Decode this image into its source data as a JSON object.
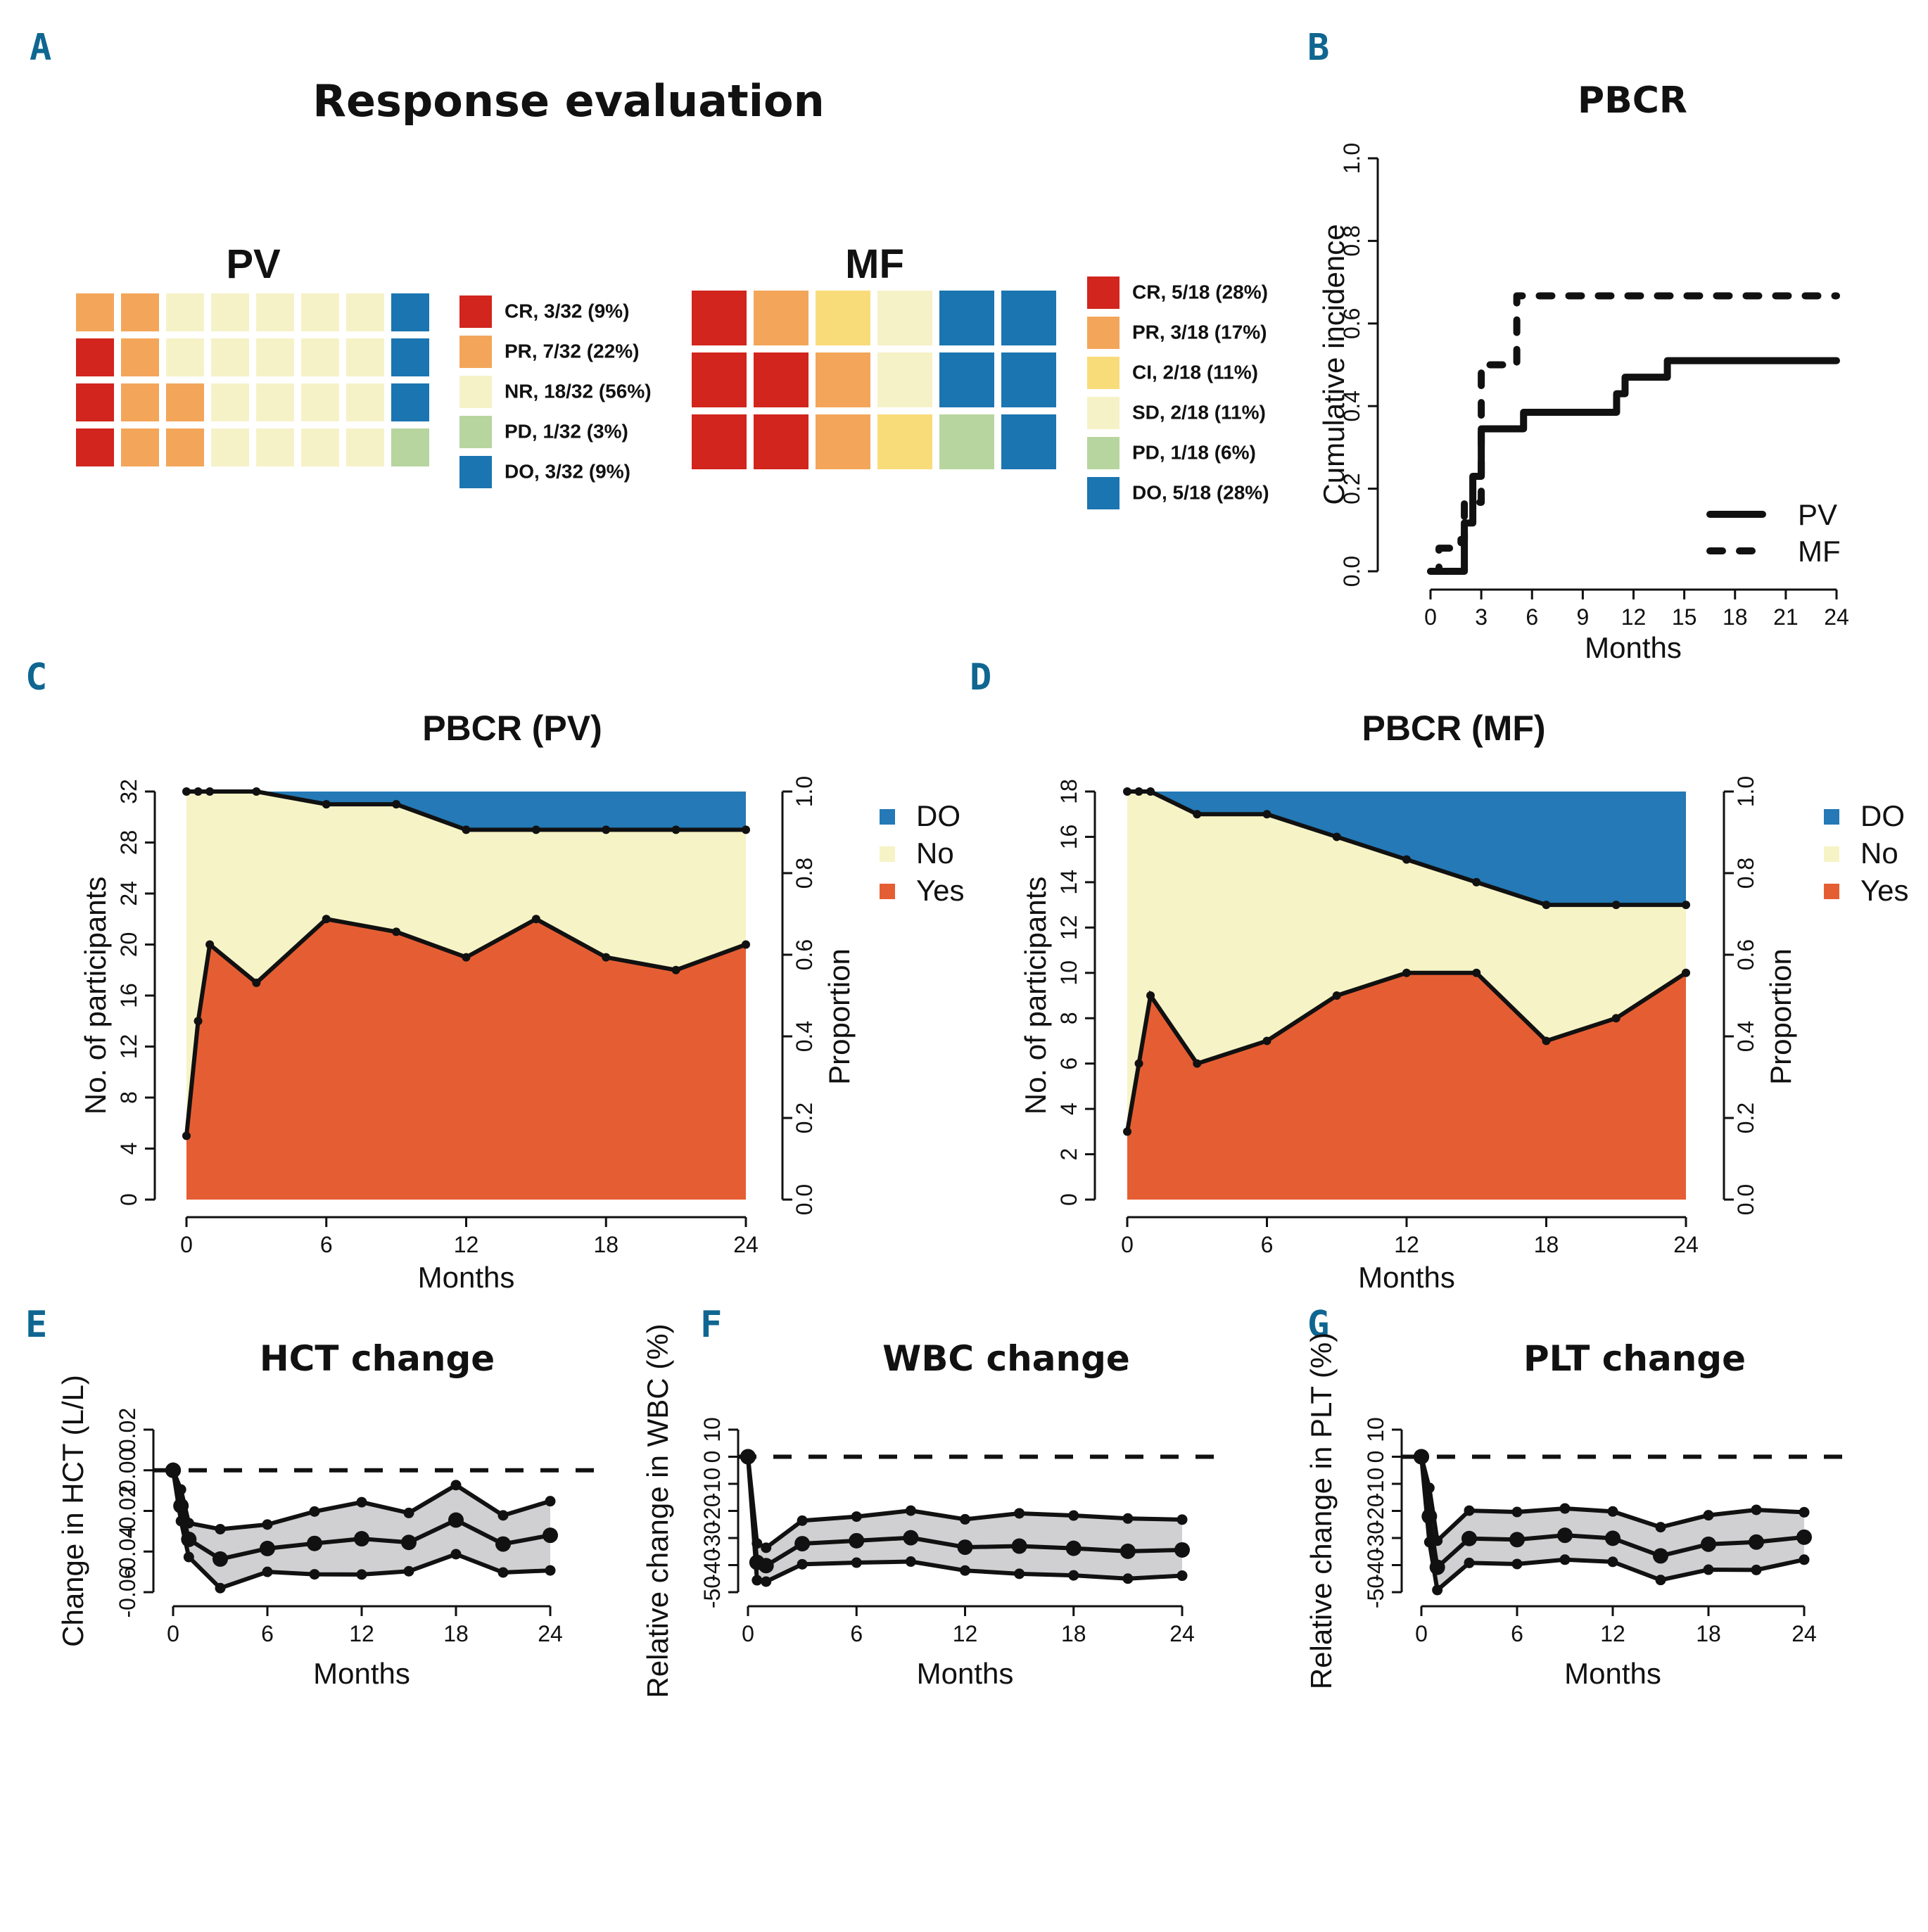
{
  "colors": {
    "CR": "#d1251d",
    "PR": "#f3a65a",
    "CI": "#f9dc7a",
    "NR": "#f6f2c8",
    "SD": "#f6f2c8",
    "PD": "#b7d59f",
    "DO": "#1b75b1",
    "yes": "#e55e33",
    "no": "#f6f3c6",
    "do_area": "#2479b6",
    "band": "#d0d0d2",
    "line": "#111111",
    "panel_letter": "#0f6691"
  },
  "panel_letters": [
    "A",
    "B",
    "C",
    "D",
    "E",
    "F",
    "G"
  ],
  "chart_data": [
    {
      "id": "A",
      "type": "waffle",
      "title": "Response evaluation",
      "groups": [
        {
          "name": "PV",
          "rows": 4,
          "cols": 8,
          "fill_order": "column-wise, bottom to top",
          "categories": [
            {
              "key": "CR",
              "count": 3,
              "label": "CR, 3/32 (9%)"
            },
            {
              "key": "PR",
              "count": 7,
              "label": "PR, 7/32 (22%)"
            },
            {
              "key": "NR",
              "count": 18,
              "label": "NR, 18/32 (56%)"
            },
            {
              "key": "PD",
              "count": 1,
              "label": "PD, 1/32 (3%)"
            },
            {
              "key": "DO",
              "count": 3,
              "label": "DO, 3/32 (9%)"
            }
          ]
        },
        {
          "name": "MF",
          "rows": 3,
          "cols": 6,
          "fill_order": "column-wise, bottom to top",
          "categories": [
            {
              "key": "CR",
              "count": 5,
              "label": "CR, 5/18 (28%)"
            },
            {
              "key": "PR",
              "count": 3,
              "label": "PR, 3/18 (17%)"
            },
            {
              "key": "CI",
              "count": 2,
              "label": "CI, 2/18 (11%)"
            },
            {
              "key": "SD",
              "count": 2,
              "label": "SD, 2/18 (11%)"
            },
            {
              "key": "PD",
              "count": 1,
              "label": "PD, 1/18 (6%)"
            },
            {
              "key": "DO",
              "count": 5,
              "label": "DO, 5/18 (28%)"
            }
          ]
        }
      ]
    },
    {
      "id": "B",
      "type": "line",
      "subtype": "step",
      "title": "PBCR",
      "xlabel": "Months",
      "ylabel": "Cumulative incidence",
      "xlim": [
        0,
        24
      ],
      "ylim": [
        0,
        1
      ],
      "xticks": [
        0,
        3,
        6,
        9,
        12,
        15,
        18,
        21,
        24
      ],
      "yticks": [
        "0.0",
        "0.2",
        "0.4",
        "0.6",
        "0.8",
        "1.0"
      ],
      "legend_position": "bottom-right",
      "series": [
        {
          "name": "PV",
          "style": "solid",
          "x": [
            0,
            2.0,
            2.5,
            3.0,
            5.5,
            11.0,
            11.5,
            14.0,
            24
          ],
          "y": [
            0,
            0.117,
            0.23,
            0.345,
            0.385,
            0.43,
            0.47,
            0.51,
            0.51
          ]
        },
        {
          "name": "MF",
          "style": "dashed",
          "x": [
            0,
            0.5,
            1.8,
            2.0,
            3.0,
            5.1,
            24
          ],
          "y": [
            0,
            0.056,
            0.077,
            0.167,
            0.5,
            0.667,
            0.667
          ]
        }
      ]
    },
    {
      "id": "C",
      "type": "area",
      "title": "PBCR (PV)",
      "xlabel": "Months",
      "ylabel": "No. of participants",
      "ylabel_right": "Proportion",
      "xlim": [
        0,
        24
      ],
      "ylim": [
        0,
        32
      ],
      "xticks": [
        0,
        6,
        12,
        18,
        24
      ],
      "yticks": [
        0,
        4,
        8,
        12,
        16,
        20,
        24,
        28,
        32
      ],
      "yticks_right": [
        "0.0",
        "0.2",
        "0.4",
        "0.6",
        "0.8",
        "1.0"
      ],
      "legend": [
        "DO",
        "No",
        "Yes"
      ],
      "legend_position": "right",
      "total": 32,
      "x": [
        0,
        0.5,
        1,
        3,
        6,
        9,
        12,
        15,
        18,
        21,
        24
      ],
      "series": [
        {
          "name": "Yes",
          "values": [
            5,
            14,
            20,
            17,
            22,
            21,
            19,
            22,
            19,
            18,
            20
          ]
        },
        {
          "name": "Yes+No",
          "values": [
            32,
            32,
            32,
            32,
            31,
            31,
            29,
            29,
            29,
            29,
            29
          ]
        }
      ]
    },
    {
      "id": "D",
      "type": "area",
      "title": "PBCR (MF)",
      "xlabel": "Months",
      "ylabel": "No. of participants",
      "ylabel_right": "Proportion",
      "xlim": [
        0,
        24
      ],
      "ylim": [
        0,
        18
      ],
      "xticks": [
        0,
        6,
        12,
        18,
        24
      ],
      "yticks": [
        0,
        2,
        4,
        6,
        8,
        10,
        12,
        14,
        16,
        18
      ],
      "yticks_right": [
        "0.0",
        "0.2",
        "0.4",
        "0.6",
        "0.8",
        "1.0"
      ],
      "legend": [
        "DO",
        "No",
        "Yes"
      ],
      "legend_position": "right",
      "total": 18,
      "x": [
        0,
        0.5,
        1,
        3,
        6,
        9,
        12,
        15,
        18,
        21,
        24
      ],
      "series": [
        {
          "name": "Yes",
          "values": [
            3,
            6,
            9,
            6,
            7,
            9,
            10,
            10,
            7,
            8,
            10
          ]
        },
        {
          "name": "Yes+No",
          "values": [
            18,
            18,
            18,
            17,
            17,
            16,
            15,
            14,
            13,
            13,
            13
          ]
        }
      ]
    },
    {
      "id": "E",
      "type": "line",
      "title": "HCT change",
      "xlabel": "Months",
      "ylabel": "Change in HCT (L/L)",
      "xlim": [
        0,
        24
      ],
      "ylim": [
        -0.06,
        0.02
      ],
      "xticks": [
        0,
        6,
        12,
        18,
        24
      ],
      "yticks": [
        "-0.06",
        "-0.04",
        "-0.02",
        "0.00",
        "0.02"
      ],
      "reference_line": 0,
      "x": [
        0,
        0.5,
        1,
        3,
        6,
        9,
        12,
        15,
        18,
        21,
        24
      ],
      "series": [
        {
          "name": "mean",
          "values": [
            0,
            -0.0175,
            -0.034,
            -0.0437,
            -0.0385,
            -0.036,
            -0.0337,
            -0.0355,
            -0.0245,
            -0.0363,
            -0.032
          ]
        },
        {
          "name": "upper",
          "values": [
            0,
            -0.0095,
            -0.026,
            -0.029,
            -0.0267,
            -0.0203,
            -0.0157,
            -0.021,
            -0.0073,
            -0.0222,
            -0.0152
          ]
        },
        {
          "name": "lower",
          "values": [
            0,
            -0.025,
            -0.0427,
            -0.058,
            -0.05,
            -0.0512,
            -0.0513,
            -0.0497,
            -0.0413,
            -0.0503,
            -0.0493
          ]
        }
      ]
    },
    {
      "id": "F",
      "type": "line",
      "title": "WBC change",
      "xlabel": "Months",
      "ylabel": "Relative change in WBC (%)",
      "xlim": [
        0,
        24
      ],
      "ylim": [
        -50,
        10
      ],
      "xticks": [
        0,
        6,
        12,
        18,
        24
      ],
      "yticks": [
        "-50",
        "-40",
        "-30",
        "-20",
        "-10",
        "0",
        "10"
      ],
      "reference_line": 0,
      "x": [
        0,
        0.5,
        1,
        3,
        6,
        9,
        12,
        15,
        18,
        21,
        24
      ],
      "series": [
        {
          "name": "mean",
          "values": [
            0,
            -39.0,
            -40.2,
            -32.1,
            -31.0,
            -29.9,
            -33.4,
            -33.0,
            -33.8,
            -34.9,
            -34.4
          ]
        },
        {
          "name": "upper",
          "values": [
            0,
            -32.0,
            -33.6,
            -23.6,
            -22.1,
            -19.9,
            -23.1,
            -20.9,
            -21.7,
            -22.8,
            -23.2
          ]
        },
        {
          "name": "lower",
          "values": [
            0,
            -45.6,
            -46.1,
            -39.7,
            -39.1,
            -38.7,
            -42.0,
            -43.2,
            -43.8,
            -45.0,
            -43.9
          ]
        }
      ]
    },
    {
      "id": "G",
      "type": "line",
      "title": "PLT change",
      "xlabel": "Months",
      "ylabel": "Relative change in PLT (%)",
      "xlim": [
        0,
        24
      ],
      "ylim": [
        -50,
        10
      ],
      "xticks": [
        0,
        6,
        12,
        18,
        24
      ],
      "yticks": [
        "-50",
        "-40",
        "-30",
        "-20",
        "-10",
        "0",
        "10"
      ],
      "reference_line": 0,
      "x": [
        0,
        0.5,
        1,
        3,
        6,
        9,
        12,
        15,
        18,
        21,
        24
      ],
      "series": [
        {
          "name": "mean",
          "values": [
            0,
            -22.0,
            -40.8,
            -30.2,
            -30.6,
            -29.0,
            -30.1,
            -36.6,
            -32.3,
            -31.5,
            -29.7
          ]
        },
        {
          "name": "upper",
          "values": [
            0,
            -11.5,
            -31.0,
            -19.9,
            -20.4,
            -19.1,
            -20.2,
            -26.0,
            -21.6,
            -19.6,
            -20.5
          ]
        },
        {
          "name": "lower",
          "values": [
            0,
            -31.5,
            -49.2,
            -39.2,
            -39.6,
            -38.0,
            -38.8,
            -45.5,
            -41.7,
            -41.8,
            -38.0
          ]
        }
      ]
    }
  ]
}
